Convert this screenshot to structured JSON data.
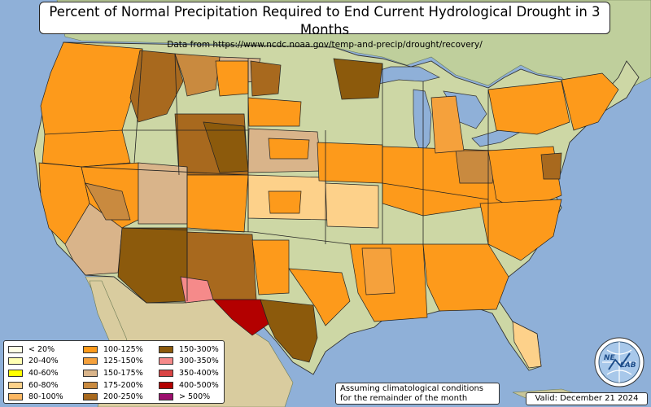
{
  "title": "Percent of Normal Precipitation Required to End Current Hydrological Drought in 3 Months",
  "subtitle": "Data from https://www.ncdc.noaa.gov/temp-and-precip/drought/recovery/",
  "legend": {
    "items": [
      {
        "label": "< 20%",
        "color": "#ffffe6"
      },
      {
        "label": "20-40%",
        "color": "#ffffb2"
      },
      {
        "label": "40-60%",
        "color": "#ffff00"
      },
      {
        "label": "60-80%",
        "color": "#fdd18a"
      },
      {
        "label": "80-100%",
        "color": "#fdb863"
      },
      {
        "label": "100-125%",
        "color": "#fd9a1b"
      },
      {
        "label": "125-150%",
        "color": "#f5a13c"
      },
      {
        "label": "150-175%",
        "color": "#d9b48a"
      },
      {
        "label": "175-200%",
        "color": "#c98a3f"
      },
      {
        "label": "200-250%",
        "color": "#a8691e"
      },
      {
        "label": "150-300%",
        "color": "#8c5a0c"
      },
      {
        "label": "300-350%",
        "color": "#f58a8a"
      },
      {
        "label": "350-400%",
        "color": "#d94444"
      },
      {
        "label": "400-500%",
        "color": "#b30000"
      },
      {
        "label": "> 500%",
        "color": "#9c0e6e"
      }
    ]
  },
  "note_line1": "Assuming climatological conditions",
  "note_line2": "for the remainder of the month",
  "valid": "Valid: December 21 2024",
  "logo_text_left": "NE",
  "logo_text_right": "LAB",
  "colors": {
    "ocean": "#8fb0d8",
    "land": "#c9d3a8",
    "canada": "#bfcf9c",
    "mexico": "#d9cc9f",
    "no_drought": "#cdd7a5"
  }
}
